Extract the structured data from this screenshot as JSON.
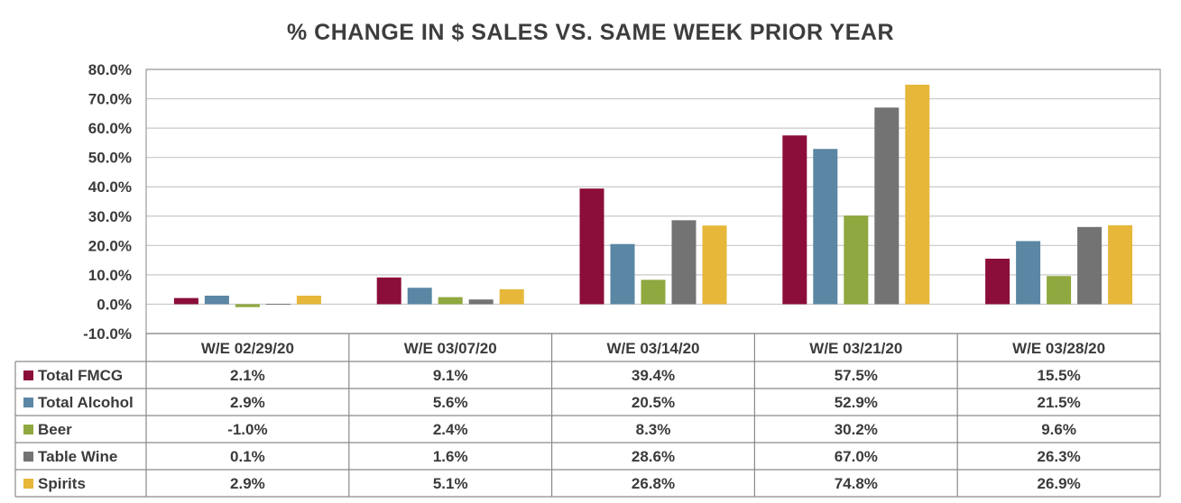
{
  "chart_data": {
    "type": "bar",
    "title": "% CHANGE IN $ SALES VS. SAME WEEK PRIOR YEAR",
    "categories": [
      "W/E 02/29/20",
      "W/E 03/07/20",
      "W/E 03/14/20",
      "W/E 03/21/20",
      "W/E 03/28/20"
    ],
    "series": [
      {
        "name": "Total FMCG",
        "color": "#8b0d3a",
        "values": [
          2.1,
          9.1,
          39.4,
          57.5,
          15.5
        ],
        "labels": [
          "2.1%",
          "9.1%",
          "39.4%",
          "57.5%",
          "15.5%"
        ]
      },
      {
        "name": "Total Alcohol",
        "color": "#5b87a4",
        "values": [
          2.9,
          5.6,
          20.5,
          52.9,
          21.5
        ],
        "labels": [
          "2.9%",
          "5.6%",
          "20.5%",
          "52.9%",
          "21.5%"
        ]
      },
      {
        "name": "Beer",
        "color": "#8fa83f",
        "values": [
          -1.0,
          2.4,
          8.3,
          30.2,
          9.6
        ],
        "labels": [
          "-1.0%",
          "2.4%",
          "8.3%",
          "30.2%",
          "9.6%"
        ]
      },
      {
        "name": "Table Wine",
        "color": "#737373",
        "values": [
          0.1,
          1.6,
          28.6,
          67.0,
          26.3
        ],
        "labels": [
          "0.1%",
          "1.6%",
          "28.6%",
          "67.0%",
          "26.3%"
        ]
      },
      {
        "name": "Spirits",
        "color": "#e7b73a",
        "values": [
          2.9,
          5.1,
          26.8,
          74.8,
          26.9
        ],
        "labels": [
          "2.9%",
          "5.1%",
          "26.8%",
          "74.8%",
          "26.9%"
        ]
      }
    ],
    "ylim": [
      -10,
      80
    ],
    "yticks": [
      -10,
      0,
      10,
      20,
      30,
      40,
      50,
      60,
      70,
      80
    ],
    "ytick_labels": [
      "-10.0%",
      "0.0%",
      "10.0%",
      "20.0%",
      "30.0%",
      "40.0%",
      "50.0%",
      "60.0%",
      "70.0%",
      "80.0%"
    ],
    "grid": true,
    "legend": "data-table"
  }
}
